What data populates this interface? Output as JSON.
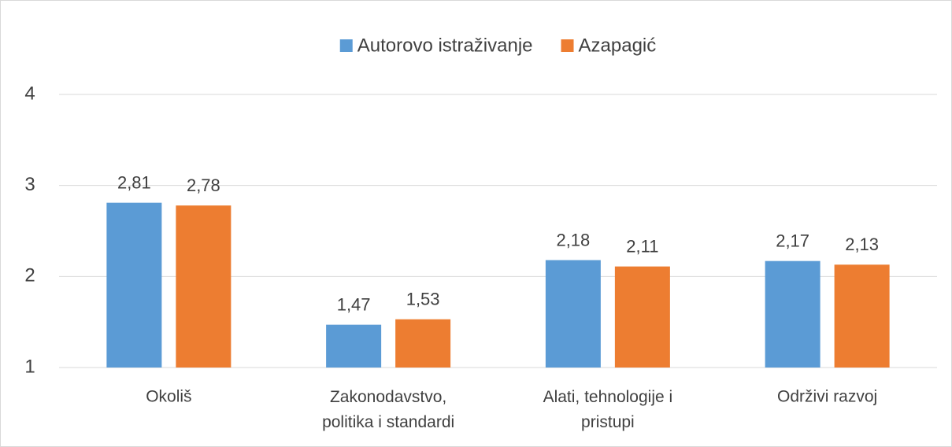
{
  "chart_data": {
    "type": "bar",
    "categories": [
      "Okoliš",
      "Zakonodavstvo, politika i standardi",
      "Alati, tehnologije i pristupi",
      "Održivi razvoj"
    ],
    "series": [
      {
        "name": "Autorovo istraživanje",
        "color": "#5b9bd5",
        "values": [
          2.81,
          1.47,
          2.18,
          2.17
        ],
        "value_labels": [
          "2,81",
          "1,47",
          "2,18",
          "2,17"
        ]
      },
      {
        "name": "Azapagić",
        "color": "#ed7d31",
        "values": [
          2.78,
          1.53,
          2.11,
          2.13
        ],
        "value_labels": [
          "2,78",
          "1,53",
          "2,11",
          "2,13"
        ]
      }
    ],
    "ylim": [
      1,
      4
    ],
    "yticks": [
      1,
      2,
      3,
      4
    ],
    "grid": true,
    "legend": "top"
  }
}
